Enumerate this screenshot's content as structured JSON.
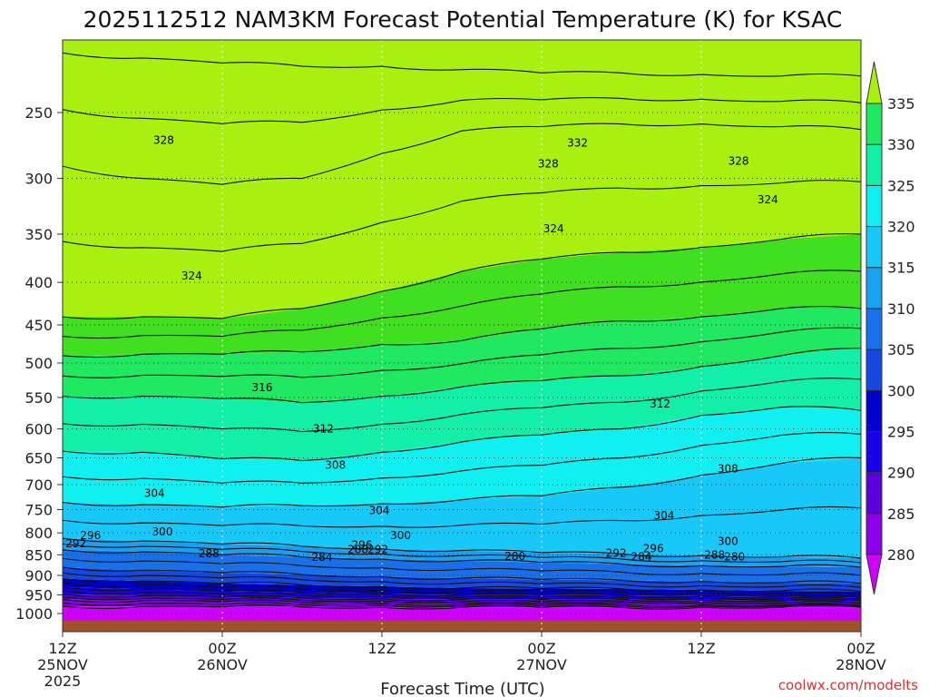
{
  "chart_data": {
    "type": "area",
    "title": "2025112512 NAM3KM Forecast Potential Temperature (K) for KSAC",
    "xlabel": "Forecast Time (UTC)",
    "ylabel": "",
    "y_axis": {
      "label": "",
      "ticks": [
        250,
        300,
        350,
        400,
        450,
        500,
        550,
        600,
        650,
        700,
        750,
        800,
        850,
        900,
        950,
        1000
      ],
      "range": [
        200,
        1050
      ]
    },
    "x_axis": {
      "ticks": [
        {
          "hour": 0,
          "label": "12Z",
          "sub": "25NOV",
          "sub2": "2025"
        },
        {
          "hour": 12,
          "label": "00Z",
          "sub": "26NOV",
          "sub2": ""
        },
        {
          "hour": 24,
          "label": "12Z",
          "sub": "",
          "sub2": ""
        },
        {
          "hour": 36,
          "label": "00Z",
          "sub": "27NOV",
          "sub2": ""
        },
        {
          "hour": 48,
          "label": "12Z",
          "sub": "",
          "sub2": ""
        },
        {
          "hour": 60,
          "label": "00Z",
          "sub": "28NOV",
          "sub2": ""
        }
      ],
      "range": [
        0,
        60
      ]
    },
    "colorbar": {
      "units": "K",
      "labels": [
        280,
        285,
        290,
        295,
        300,
        305,
        310,
        315,
        320,
        325,
        330,
        335
      ],
      "colors": [
        "#d000ff",
        "#8a00e8",
        "#5a00d8",
        "#1a00e8",
        "#0000cc",
        "#1548e0",
        "#1a70e8",
        "#1aa0f0",
        "#18c8f8",
        "#10f0f0",
        "#12f0a8",
        "#20e860",
        "#40e020",
        "#a8f010"
      ]
    },
    "contour_labels": [
      {
        "hour": 7.6,
        "p": 270,
        "text": "328"
      },
      {
        "hour": 38.7,
        "p": 272,
        "text": "332"
      },
      {
        "hour": 36.5,
        "p": 288,
        "text": "328"
      },
      {
        "hour": 50.8,
        "p": 286,
        "text": "328"
      },
      {
        "hour": 53.0,
        "p": 318,
        "text": "324"
      },
      {
        "hour": 36.9,
        "p": 345,
        "text": "324"
      },
      {
        "hour": 9.7,
        "p": 393,
        "text": "324"
      },
      {
        "hour": 15.0,
        "p": 535,
        "text": "316"
      },
      {
        "hour": 44.9,
        "p": 560,
        "text": "312"
      },
      {
        "hour": 19.6,
        "p": 600,
        "text": "312"
      },
      {
        "hour": 20.5,
        "p": 663,
        "text": "308"
      },
      {
        "hour": 50.0,
        "p": 670,
        "text": "308"
      },
      {
        "hour": 6.9,
        "p": 717,
        "text": "304"
      },
      {
        "hour": 23.8,
        "p": 752,
        "text": "304"
      },
      {
        "hour": 45.2,
        "p": 762,
        "text": "304"
      },
      {
        "hour": 7.5,
        "p": 798,
        "text": "300"
      },
      {
        "hour": 25.4,
        "p": 806,
        "text": "300"
      },
      {
        "hour": 50.0,
        "p": 819,
        "text": "300"
      },
      {
        "hour": 2.1,
        "p": 806,
        "text": "296"
      },
      {
        "hour": 1.0,
        "p": 824,
        "text": "292"
      },
      {
        "hour": 22.5,
        "p": 827,
        "text": "296"
      },
      {
        "hour": 44.4,
        "p": 836,
        "text": "296"
      },
      {
        "hour": 23.7,
        "p": 838,
        "text": "292"
      },
      {
        "hour": 41.6,
        "p": 846,
        "text": "292"
      },
      {
        "hour": 22.2,
        "p": 838,
        "text": "288"
      },
      {
        "hour": 11.0,
        "p": 847,
        "text": "288"
      },
      {
        "hour": 49.0,
        "p": 850,
        "text": "288"
      },
      {
        "hour": 43.5,
        "p": 855,
        "text": "284"
      },
      {
        "hour": 19.5,
        "p": 856,
        "text": "284"
      },
      {
        "hour": 34.0,
        "p": 854,
        "text": "280"
      },
      {
        "hour": 50.5,
        "p": 855,
        "text": "280"
      }
    ],
    "legend": "right colorbar",
    "grid": true
  },
  "credit": "coolwx.com/modelts"
}
